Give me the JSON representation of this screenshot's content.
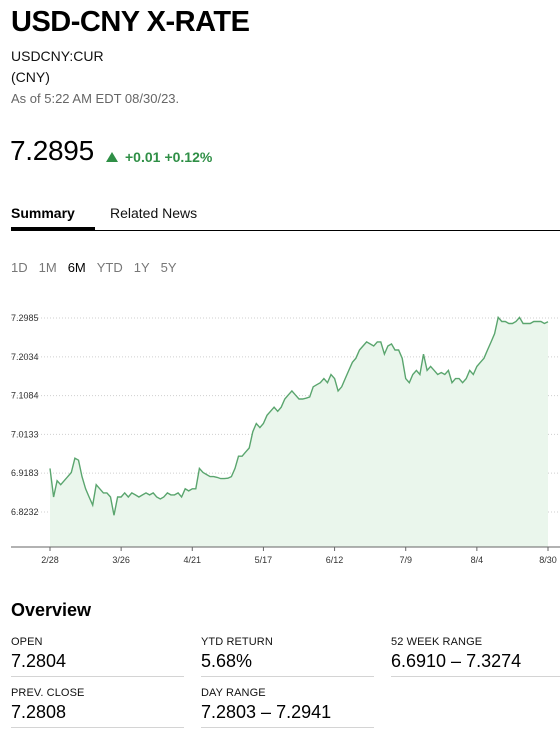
{
  "header": {
    "title": "USD-CNY X-RATE",
    "ticker": "USDCNY:CUR",
    "currency": "(CNY)",
    "as_of": "As of 5:22 AM EDT 08/30/23."
  },
  "quote": {
    "price": "7.2895",
    "change": "+0.01",
    "change_pct": "+0.12%",
    "up_color": "#2f8f46"
  },
  "tabs": [
    {
      "label": "Summary",
      "active": true
    },
    {
      "label": "Related News",
      "active": false
    }
  ],
  "ranges": [
    "1D",
    "1M",
    "6M",
    "YTD",
    "1Y",
    "5Y"
  ],
  "active_range": "6M",
  "chart_data": {
    "type": "area",
    "x_ticks": [
      "2/28",
      "3/26",
      "4/21",
      "5/17",
      "6/12",
      "7/9",
      "8/4",
      "8/30"
    ],
    "y_ticks": [
      "7.2985",
      "7.2034",
      "7.1084",
      "7.0133",
      "6.9183",
      "6.8232"
    ],
    "ylim": [
      6.77,
      7.33
    ],
    "line_color": "#5aa56e",
    "fill_color": "#eaf6ec",
    "values": [
      6.93,
      6.86,
      6.9,
      6.89,
      6.9,
      6.91,
      6.92,
      6.955,
      6.95,
      6.91,
      6.88,
      6.86,
      6.84,
      6.89,
      6.88,
      6.87,
      6.87,
      6.86,
      6.815,
      6.86,
      6.86,
      6.87,
      6.86,
      6.87,
      6.865,
      6.86,
      6.865,
      6.87,
      6.865,
      6.87,
      6.86,
      6.855,
      6.86,
      6.87,
      6.865,
      6.865,
      6.87,
      6.86,
      6.88,
      6.875,
      6.88,
      6.88,
      6.93,
      6.92,
      6.915,
      6.91,
      6.91,
      6.908,
      6.905,
      6.905,
      6.906,
      6.91,
      6.93,
      6.96,
      6.96,
      6.97,
      6.98,
      7.02,
      7.04,
      7.03,
      7.04,
      7.06,
      7.07,
      7.08,
      7.07,
      7.08,
      7.1,
      7.11,
      7.12,
      7.11,
      7.1,
      7.1,
      7.102,
      7.105,
      7.13,
      7.135,
      7.14,
      7.15,
      7.14,
      7.16,
      7.15,
      7.12,
      7.13,
      7.15,
      7.17,
      7.19,
      7.2,
      7.22,
      7.23,
      7.24,
      7.235,
      7.23,
      7.24,
      7.24,
      7.21,
      7.23,
      7.235,
      7.22,
      7.22,
      7.2,
      7.15,
      7.14,
      7.16,
      7.17,
      7.16,
      7.21,
      7.17,
      7.18,
      7.17,
      7.16,
      7.165,
      7.16,
      7.17,
      7.14,
      7.15,
      7.15,
      7.14,
      7.15,
      7.17,
      7.16,
      7.18,
      7.19,
      7.2,
      7.22,
      7.24,
      7.26,
      7.3,
      7.29,
      7.29,
      7.285,
      7.285,
      7.29,
      7.3,
      7.285,
      7.285,
      7.285,
      7.29,
      7.29,
      7.29,
      7.285,
      7.2895
    ]
  },
  "overview": {
    "title": "Overview",
    "stats": [
      {
        "label": "OPEN",
        "value": "7.2804"
      },
      {
        "label": "YTD RETURN",
        "value": "5.68%"
      },
      {
        "label": "52 WEEK RANGE",
        "value": "6.6910 – 7.3274"
      },
      {
        "label": "PREV. CLOSE",
        "value": "7.2808"
      },
      {
        "label": "DAY RANGE",
        "value": "7.2803 – 7.2941"
      }
    ]
  }
}
